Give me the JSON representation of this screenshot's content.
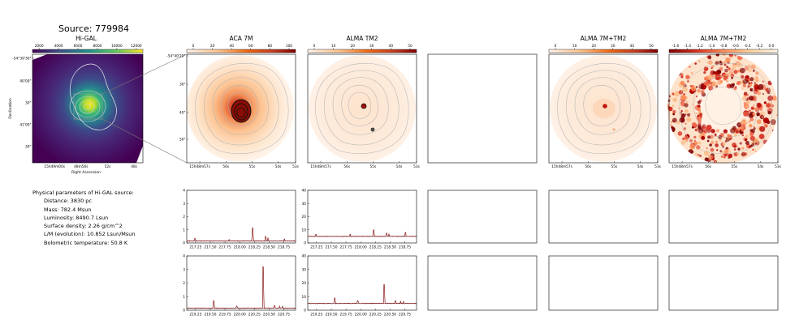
{
  "figure": {
    "source_label": "Source: 779984",
    "colors": {
      "magma_low": "#fff5eb",
      "magma_high": "#7f0000",
      "viridis_low": "#440154",
      "viridis_high": "#fde725",
      "spectrum": "#8b1a1a"
    }
  },
  "info": {
    "heading": "Physical parameters of Hi-GAL source:",
    "lines": [
      "Distance: 3830 pc",
      "Mass: 782.4 Msun",
      "Luminosity: 8490.7 Lsun",
      "Surface density: 2.26 g/cm^2",
      "L/M (evolution): 10.852 Lsun/Msun",
      "Bolometric temperature: 50.8 K"
    ]
  },
  "chart_data": [
    {
      "type": "heatmap",
      "title": "Hi-GAL",
      "colorbar_ticks": [
        "2000",
        "4000",
        "6000",
        "8000",
        "10000",
        "12000"
      ],
      "xlabel": "Right Ascension",
      "ylabel": "Declination",
      "x_ticks": [
        "15h49m00s",
        "48m56s",
        "52s",
        "48s"
      ],
      "y_ticks": [
        "-54°39'30\"",
        "40'00\"",
        "30\"",
        "41'00\"",
        "30\""
      ]
    },
    {
      "type": "heatmap",
      "title": "ACA 7M",
      "colorbar_ticks": [
        "0",
        "20",
        "40",
        "60",
        "80",
        "100"
      ],
      "x_ticks": [
        "15h48m57s",
        "56s",
        "55s",
        "54s",
        "53s"
      ],
      "y_ticks": [
        "-54°40'20\"",
        "30\"",
        "40\"",
        "50\""
      ]
    },
    {
      "type": "heatmap",
      "title": "ALMA TM2",
      "colorbar_ticks": [
        "0",
        "10",
        "20",
        "30",
        "40",
        "50"
      ],
      "x_ticks": [
        "15h48m57s",
        "56s",
        "55s",
        "54s",
        "53s"
      ]
    },
    {
      "type": "heatmap",
      "title": "ALMA 7M+TM2",
      "colorbar_ticks": [
        "0",
        "10",
        "20",
        "30",
        "40",
        "50"
      ],
      "x_ticks": [
        "15h48m57s",
        "56s",
        "55s",
        "54s",
        "53s"
      ]
    },
    {
      "type": "heatmap",
      "title": "ALMA 7M+TM2",
      "colorbar_ticks": [
        "-1.6",
        "-1.4",
        "-1.2",
        "-1.0",
        "-0.8",
        "-0.6",
        "-0.4",
        "-0.2",
        "0.0"
      ],
      "x_ticks": [
        "15h48m57s",
        "56s",
        "55s",
        "54s",
        "53s"
      ]
    },
    {
      "type": "line",
      "name": "ACA 7M spectrum window 1",
      "x_ticks": [
        "217.25",
        "217.50",
        "217.75",
        "218.00",
        "218.25",
        "218.50",
        "218.75"
      ],
      "y_ticks": [
        "0",
        "1",
        "2",
        "3",
        "4"
      ],
      "xlim": [
        217.1,
        218.95
      ],
      "ylim": [
        0,
        4
      ],
      "baseline": 0.15,
      "peaks": [
        [
          217.24,
          0.35
        ],
        [
          217.82,
          0.25
        ],
        [
          218.22,
          1.15
        ],
        [
          218.44,
          0.5
        ],
        [
          218.48,
          0.4
        ],
        [
          218.76,
          0.3
        ]
      ]
    },
    {
      "type": "line",
      "name": "ALMA TM2 spectrum window 1",
      "x_ticks": [
        "217.25",
        "217.50",
        "217.75",
        "218.00",
        "218.25",
        "218.50",
        "218.75"
      ],
      "y_ticks": [
        "0",
        "10",
        "20",
        "30",
        "40"
      ],
      "xlim": [
        217.1,
        218.95
      ],
      "ylim": [
        0,
        40
      ],
      "baseline": 5,
      "peaks": [
        [
          217.24,
          6.5
        ],
        [
          217.82,
          6.5
        ],
        [
          218.22,
          10
        ],
        [
          218.44,
          7.5
        ],
        [
          218.48,
          7
        ],
        [
          218.76,
          8
        ]
      ]
    },
    {
      "type": "line",
      "name": "ACA 7M spectrum window 2",
      "x_ticks": [
        "219.25",
        "219.50",
        "219.75",
        "220.00",
        "220.25",
        "220.50",
        "220.75"
      ],
      "y_ticks": [
        "0",
        "1",
        "2",
        "3",
        "4"
      ],
      "xlim": [
        219.1,
        220.95
      ],
      "ylim": [
        0,
        4
      ],
      "baseline": 0.15,
      "peaks": [
        [
          219.56,
          0.7
        ],
        [
          219.95,
          0.3
        ],
        [
          220.4,
          3.2
        ],
        [
          220.59,
          0.35
        ],
        [
          220.68,
          0.3
        ],
        [
          220.73,
          0.3
        ]
      ]
    },
    {
      "type": "line",
      "name": "ALMA TM2 spectrum window 2",
      "x_ticks": [
        "219.25",
        "219.50",
        "219.75",
        "220.00",
        "220.25",
        "220.50",
        "220.75"
      ],
      "y_ticks": [
        "0",
        "10",
        "20",
        "30",
        "40"
      ],
      "xlim": [
        219.1,
        220.95
      ],
      "ylim": [
        0,
        40
      ],
      "baseline": 5,
      "peaks": [
        [
          219.56,
          9
        ],
        [
          219.95,
          7
        ],
        [
          220.4,
          19
        ],
        [
          220.59,
          7
        ],
        [
          220.68,
          6.5
        ],
        [
          220.73,
          6.5
        ]
      ]
    }
  ]
}
